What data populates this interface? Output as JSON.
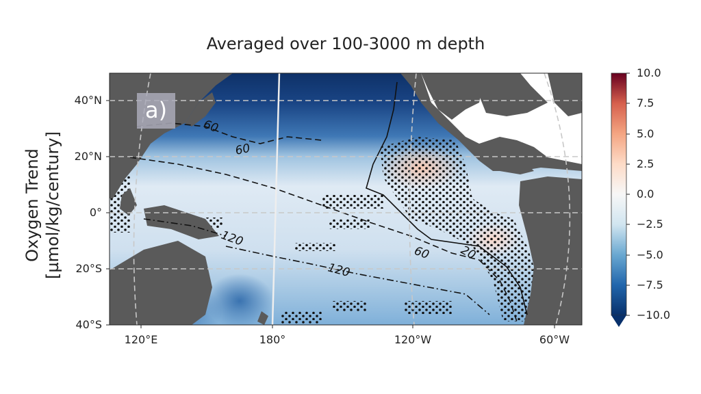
{
  "title": "Averaged over 100-3000 m depth",
  "ylabel_line1": "Oxygen Trend",
  "ylabel_line2": "[µmol/kg/century]",
  "panel_label": "a)",
  "lat_ticks": [
    "40°N",
    "20°N",
    "0°",
    "20°S",
    "40°S"
  ],
  "lon_ticks": [
    "120°E",
    "180°",
    "120°W",
    "60°W"
  ],
  "colorbar": {
    "ticks": [
      "10.0",
      "7.5",
      "5.0",
      "2.5",
      "0.0",
      "−2.5",
      "−5.0",
      "−7.5",
      "−10.0"
    ],
    "range": [
      -10.0,
      10.0
    ],
    "colors": [
      "#08306b",
      "#2166ac",
      "#4393c3",
      "#92c5de",
      "#f7f7f7",
      "#fddbc7",
      "#f4a582",
      "#d6604d",
      "#67001f"
    ]
  },
  "contour_labels": [
    "60",
    "60",
    "120",
    "120",
    "60",
    "20"
  ],
  "colors": {
    "land": "#5a5a5a",
    "ocean_north": "#1c3f7a",
    "ocean_mid": "#d6e6f2",
    "positive": "#f7d5c7"
  }
}
